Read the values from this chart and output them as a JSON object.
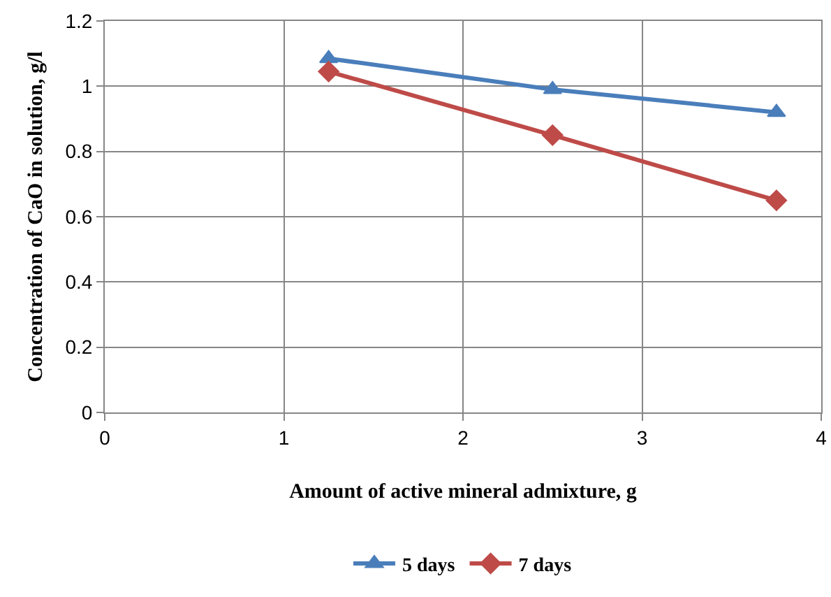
{
  "chart_data": {
    "type": "line",
    "xlabel": "Amount of active mineral admixture, g",
    "ylabel": "Concentration of CaO in solution, g/l",
    "x": [
      1.25,
      2.5,
      3.75
    ],
    "series": [
      {
        "name": "5 days",
        "color": "#4a7ebb",
        "marker": "triangle",
        "values": [
          1.085,
          0.99,
          0.92
        ]
      },
      {
        "name": "7 days",
        "color": "#be4b48",
        "marker": "diamond",
        "values": [
          1.045,
          0.85,
          0.65
        ]
      }
    ],
    "xlim": [
      0,
      4
    ],
    "xticks": [
      0,
      1,
      2,
      3,
      4
    ],
    "ylim": [
      0,
      1.2
    ],
    "yticks": [
      0,
      0.2,
      0.4,
      0.6,
      0.8,
      1,
      1.2
    ],
    "grid": true,
    "legend": "bottom",
    "line_style": "solid"
  }
}
